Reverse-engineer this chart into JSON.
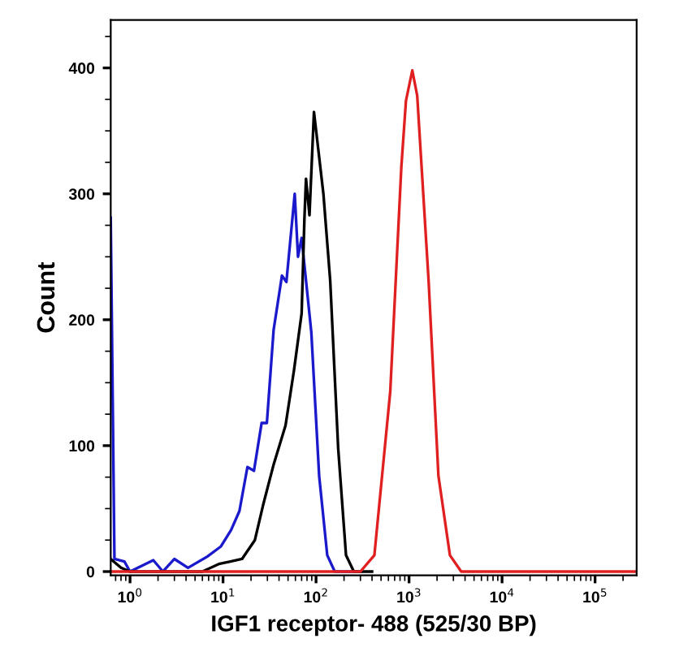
{
  "chart_data": {
    "type": "line",
    "xlabel": "IGF1 receptor- 488 (525/30 BP)",
    "ylabel": "Count",
    "log": "x",
    "grid": false,
    "marker": "none",
    "line_style": "solid",
    "xlim": [
      0.62,
      280000
    ],
    "ylim": [
      -3,
      438
    ],
    "xticks": [
      {
        "value": 1,
        "label": "10$^{0}$"
      },
      {
        "value": 10,
        "label": "10$^{1}$"
      },
      {
        "value": 100,
        "label": "10$^{2}$"
      },
      {
        "value": 1000,
        "label": "10$^{3}$"
      },
      {
        "value": 10000,
        "label": "10$^{4}$"
      },
      {
        "value": 100000,
        "label": "10$^{5}$"
      }
    ],
    "yticks": [
      0,
      100,
      200,
      300,
      400
    ],
    "series": [
      {
        "color": "#1a1acc",
        "x": [
          0.62,
          0.68,
          0.87,
          1,
          1.78,
          2.26,
          3.0,
          4.2,
          6.8,
          9.5,
          12.2,
          15,
          18.3,
          21.5,
          26,
          29.6,
          35,
          43,
          48,
          59,
          64,
          70,
          89,
          108,
          132,
          159,
          300
        ],
        "values": [
          281,
          10,
          8,
          0,
          9,
          0,
          10,
          3,
          12,
          20,
          33,
          48,
          83,
          80,
          118,
          118,
          192,
          235,
          230,
          300,
          250,
          265,
          190,
          76,
          13,
          0,
          0
        ]
      },
      {
        "color": "#000000",
        "x": [
          0.62,
          0.8,
          1,
          6,
          9,
          12,
          16,
          22,
          27,
          35,
          47,
          58,
          70,
          75,
          78,
          85,
          95,
          120,
          142,
          173,
          210,
          255,
          400
        ],
        "values": [
          10,
          3,
          0,
          0,
          6,
          8,
          10,
          25,
          53,
          85,
          116,
          160,
          205,
          280,
          312,
          283,
          365,
          300,
          231,
          98,
          13,
          0,
          0
        ]
      },
      {
        "color": "#e02020",
        "x": [
          0.62,
          300,
          424,
          628,
          826,
          927,
          1084,
          1224,
          1623,
          2070,
          2750,
          3640,
          280000
        ],
        "values": [
          0,
          0,
          13,
          143,
          321,
          374,
          398,
          378,
          231,
          76,
          13,
          0,
          0
        ]
      }
    ]
  }
}
